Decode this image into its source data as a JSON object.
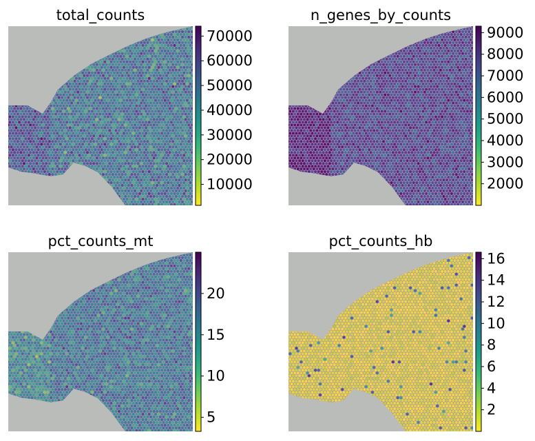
{
  "chart_data": [
    {
      "type": "heatmap",
      "title": "total_counts",
      "colormap": "viridis_reversed",
      "colorbar": {
        "min": 1500,
        "max": 74000,
        "ticks": [
          10000,
          20000,
          30000,
          40000,
          50000,
          60000,
          70000
        ],
        "tick_labels": [
          "10000",
          "20000",
          "30000",
          "40000",
          "50000",
          "60000",
          "70000"
        ]
      },
      "spot_profile": {
        "mean": 0.55,
        "spread": 0.25
      }
    },
    {
      "type": "heatmap",
      "title": "n_genes_by_counts",
      "colormap": "viridis_reversed",
      "colorbar": {
        "min": 1000,
        "max": 9300,
        "ticks": [
          2000,
          3000,
          4000,
          5000,
          6000,
          7000,
          8000,
          9000
        ],
        "tick_labels": [
          "2000",
          "3000",
          "4000",
          "5000",
          "6000",
          "7000",
          "8000",
          "9000"
        ]
      },
      "spot_profile": {
        "mean": 0.78,
        "spread": 0.18
      }
    },
    {
      "type": "heatmap",
      "title": "pct_counts_mt",
      "colormap": "viridis_reversed",
      "colorbar": {
        "min": 3.3,
        "max": 25,
        "ticks": [
          5,
          10,
          15,
          20
        ],
        "tick_labels": [
          "5",
          "10",
          "15",
          "20"
        ]
      },
      "spot_profile": {
        "mean": 0.55,
        "spread": 0.22
      }
    },
    {
      "type": "heatmap",
      "title": "pct_counts_hb",
      "colormap": "viridis_reversed",
      "colorbar": {
        "min": 0,
        "max": 16.6,
        "ticks": [
          2,
          4,
          6,
          8,
          10,
          12,
          14,
          16
        ],
        "tick_labels": [
          "2",
          "4",
          "6",
          "8",
          "10",
          "12",
          "14",
          "16"
        ]
      },
      "spot_profile": {
        "mean": 0.04,
        "spread": 0.06
      }
    }
  ],
  "colors": {
    "background_tissue_slide": "#b9bcb9",
    "tissue_pink": "#b98ac0",
    "viridis_stops": [
      "#440154",
      "#482878",
      "#3e4989",
      "#31688e",
      "#26828e",
      "#1f9e89",
      "#35b779",
      "#6ece58",
      "#b5de2b",
      "#fde725"
    ]
  }
}
